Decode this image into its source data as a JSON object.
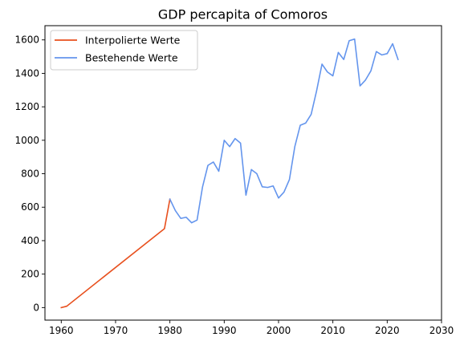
{
  "chart_data": {
    "type": "line",
    "title": "GDP percapita of Comoros",
    "xlabel": "",
    "ylabel": "",
    "xlim": [
      1957,
      2030
    ],
    "ylim": [
      -75,
      1685
    ],
    "xticks": [
      1960,
      1970,
      1980,
      1990,
      2000,
      2010,
      2020,
      2030
    ],
    "yticks": [
      0,
      200,
      400,
      600,
      800,
      1000,
      1200,
      1400,
      1600
    ],
    "grid": false,
    "legend_position": "top-left",
    "series": [
      {
        "name": "Interpolierte Werte",
        "color": "#e8501e",
        "points": [
          [
            1960,
            0
          ],
          [
            1961,
            8
          ],
          [
            1979,
            472
          ],
          [
            1980,
            648
          ]
        ]
      },
      {
        "name": "Bestehende Werte",
        "color": "#6495ed",
        "points": [
          [
            1980,
            648
          ],
          [
            1981,
            580
          ],
          [
            1982,
            533
          ],
          [
            1983,
            540
          ],
          [
            1984,
            507
          ],
          [
            1985,
            523
          ],
          [
            1986,
            720
          ],
          [
            1987,
            850
          ],
          [
            1988,
            870
          ],
          [
            1989,
            815
          ],
          [
            1990,
            1000
          ],
          [
            1991,
            962
          ],
          [
            1992,
            1010
          ],
          [
            1993,
            983
          ],
          [
            1994,
            672
          ],
          [
            1995,
            825
          ],
          [
            1996,
            800
          ],
          [
            1997,
            722
          ],
          [
            1998,
            718
          ],
          [
            1999,
            727
          ],
          [
            2000,
            655
          ],
          [
            2001,
            690
          ],
          [
            2002,
            765
          ],
          [
            2003,
            963
          ],
          [
            2004,
            1090
          ],
          [
            2005,
            1103
          ],
          [
            2006,
            1155
          ],
          [
            2007,
            1295
          ],
          [
            2008,
            1455
          ],
          [
            2009,
            1408
          ],
          [
            2010,
            1385
          ],
          [
            2011,
            1525
          ],
          [
            2012,
            1483
          ],
          [
            2013,
            1595
          ],
          [
            2014,
            1605
          ],
          [
            2015,
            1325
          ],
          [
            2016,
            1360
          ],
          [
            2017,
            1415
          ],
          [
            2018,
            1530
          ],
          [
            2019,
            1510
          ],
          [
            2020,
            1518
          ],
          [
            2021,
            1577
          ],
          [
            2022,
            1483
          ]
        ]
      }
    ]
  }
}
